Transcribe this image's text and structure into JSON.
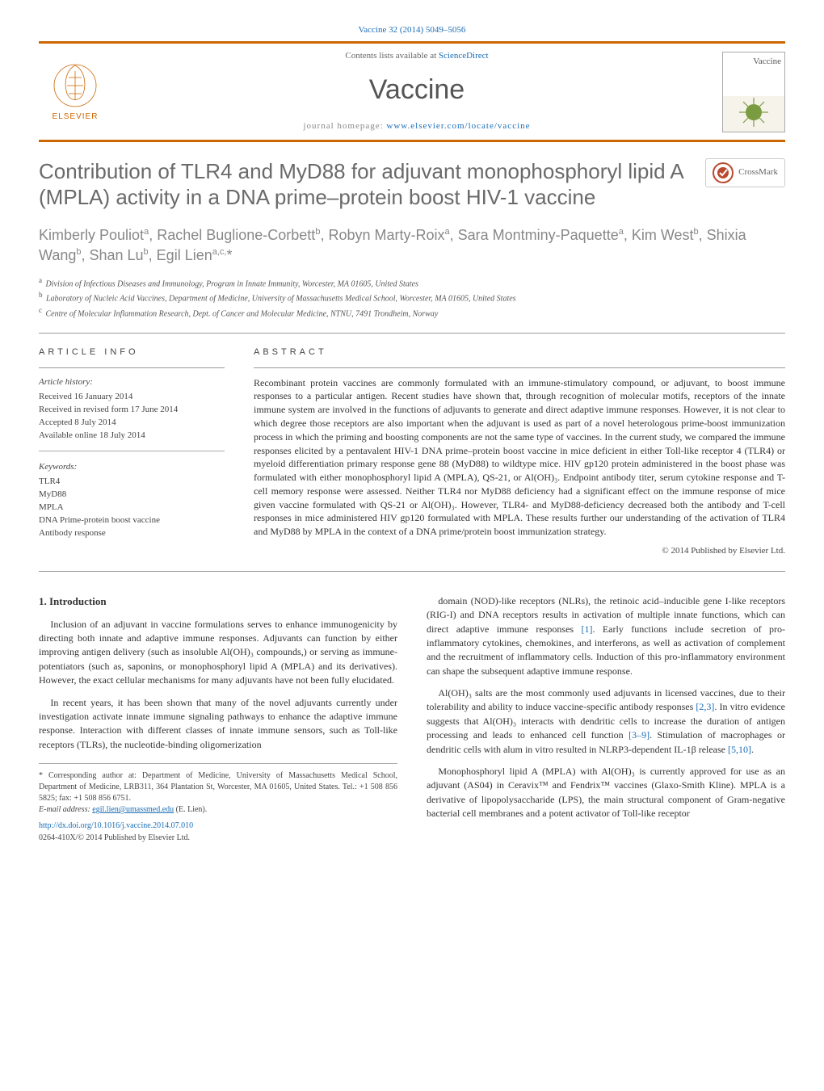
{
  "header": {
    "citation": "Vaccine 32 (2014) 5049–5056",
    "contents_label": "Contents lists available at",
    "contents_link": "ScienceDirect",
    "journal_name": "Vaccine",
    "homepage_label": "journal homepage:",
    "homepage_url": "www.elsevier.com/locate/vaccine",
    "publisher": "ELSEVIER",
    "cover_title": "Vaccine"
  },
  "crossmark": {
    "label": "CrossMark"
  },
  "paper": {
    "title": "Contribution of TLR4 and MyD88 for adjuvant monophosphoryl lipid A (MPLA) activity in a DNA prime–protein boost HIV-1 vaccine",
    "authors_html": "Kimberly Pouliot<sup>a</sup>, Rachel Buglione-Corbett<sup>b</sup>, Robyn Marty-Roix<sup>a</sup>, Sara Montminy-Paquette<sup>a</sup>, Kim West<sup>b</sup>, Shixia Wang<sup>b</sup>, Shan Lu<sup>b</sup>, Egil Lien<sup>a,c,</sup>*"
  },
  "affiliations": [
    {
      "sup": "a",
      "text": "Division of Infectious Diseases and Immunology, Program in Innate Immunity, Worcester, MA 01605, United States"
    },
    {
      "sup": "b",
      "text": "Laboratory of Nucleic Acid Vaccines, Department of Medicine, University of Massachusetts Medical School, Worcester, MA 01605, United States"
    },
    {
      "sup": "c",
      "text": "Centre of Molecular Inflammation Research, Dept. of Cancer and Molecular Medicine, NTNU, 7491 Trondheim, Norway"
    }
  ],
  "article_info": {
    "heading": "article info",
    "history_label": "Article history:",
    "history": [
      "Received 16 January 2014",
      "Received in revised form 17 June 2014",
      "Accepted 8 July 2014",
      "Available online 18 July 2014"
    ],
    "keywords_label": "Keywords:",
    "keywords": [
      "TLR4",
      "MyD88",
      "MPLA",
      "DNA Prime-protein boost vaccine",
      "Antibody response"
    ]
  },
  "abstract": {
    "heading": "abstract",
    "text": "Recombinant protein vaccines are commonly formulated with an immune-stimulatory compound, or adjuvant, to boost immune responses to a particular antigen. Recent studies have shown that, through recognition of molecular motifs, receptors of the innate immune system are involved in the functions of adjuvants to generate and direct adaptive immune responses. However, it is not clear to which degree those receptors are also important when the adjuvant is used as part of a novel heterologous prime-boost immunization process in which the priming and boosting components are not the same type of vaccines. In the current study, we compared the immune responses elicited by a pentavalent HIV-1 DNA prime–protein boost vaccine in mice deficient in either Toll-like receptor 4 (TLR4) or myeloid differentiation primary response gene 88 (MyD88) to wildtype mice. HIV gp120 protein administered in the boost phase was formulated with either monophosphoryl lipid A (MPLA), QS-21, or Al(OH)₃. Endpoint antibody titer, serum cytokine response and T-cell memory response were assessed. Neither TLR4 nor MyD88 deficiency had a significant effect on the immune response of mice given vaccine formulated with QS-21 or Al(OH)₃. However, TLR4- and MyD88-deficiency decreased both the antibody and T-cell responses in mice administered HIV gp120 formulated with MPLA. These results further our understanding of the activation of TLR4 and MyD88 by MPLA in the context of a DNA prime/protein boost immunization strategy.",
    "copyright": "© 2014 Published by Elsevier Ltd."
  },
  "body": {
    "intro_heading": "1. Introduction",
    "left_paragraphs": [
      "Inclusion of an adjuvant in vaccine formulations serves to enhance immunogenicity by directing both innate and adaptive immune responses. Adjuvants can function by either improving antigen delivery (such as insoluble Al(OH)₃ compounds,) or serving as immune-potentiators (such as, saponins, or monophosphoryl lipid A (MPLA) and its derivatives). However, the exact cellular mechanisms for many adjuvants have not been fully elucidated.",
      "In recent years, it has been shown that many of the novel adjuvants currently under investigation activate innate immune signaling pathways to enhance the adaptive immune response. Interaction with different classes of innate immune sensors, such as Toll-like receptors (TLRs), the nucleotide-binding oligomerization"
    ],
    "right_paragraphs": [
      "domain (NOD)-like receptors (NLRs), the retinoic acid–inducible gene I-like receptors (RIG-I) and DNA receptors results in activation of multiple innate functions, which can direct adaptive immune responses [1]. Early functions include secretion of pro-inflammatory cytokines, chemokines, and interferons, as well as activation of complement and the recruitment of inflammatory cells. Induction of this pro-inflammatory environment can shape the subsequent adaptive immune response.",
      "Al(OH)₃ salts are the most commonly used adjuvants in licensed vaccines, due to their tolerability and ability to induce vaccine-specific antibody responses [2,3]. In vitro evidence suggests that Al(OH)₃ interacts with dendritic cells to increase the duration of antigen processing and leads to enhanced cell function [3–9]. Stimulation of macrophages or dendritic cells with alum in vitro resulted in NLRP3-dependent IL-1β release [5,10].",
      "Monophosphoryl lipid A (MPLA) with Al(OH)₃ is currently approved for use as an adjuvant (AS04) in Ceravix™ and Fendrix™ vaccines (Glaxo-Smith Kline). MPLA is a derivative of lipopolysaccharide (LPS), the main structural component of Gram-negative bacterial cell membranes and a potent activator of Toll-like receptor"
    ],
    "citations": [
      "[1]",
      "[2,3]",
      "[3–9]",
      "[5,10]"
    ]
  },
  "footer": {
    "corr_label": "* Corresponding author at: Department of Medicine, University of Massachusetts Medical School, Department of Medicine, LRB311, 364 Plantation St, Worcester, MA 01605, United States. Tel.: +1 508 856 5825; fax: +1 508 856 6751.",
    "email_label": "E-mail address:",
    "email": "egil.lien@umassmed.edu",
    "email_name": "(E. Lien).",
    "doi": "http://dx.doi.org/10.1016/j.vaccine.2014.07.010",
    "issn": "0264-410X/© 2014 Published by Elsevier Ltd."
  },
  "colors": {
    "accent_orange": "#cc6600",
    "link_blue": "#1a6db5",
    "text_gray": "#6a6a6a",
    "author_gray": "#888888"
  }
}
